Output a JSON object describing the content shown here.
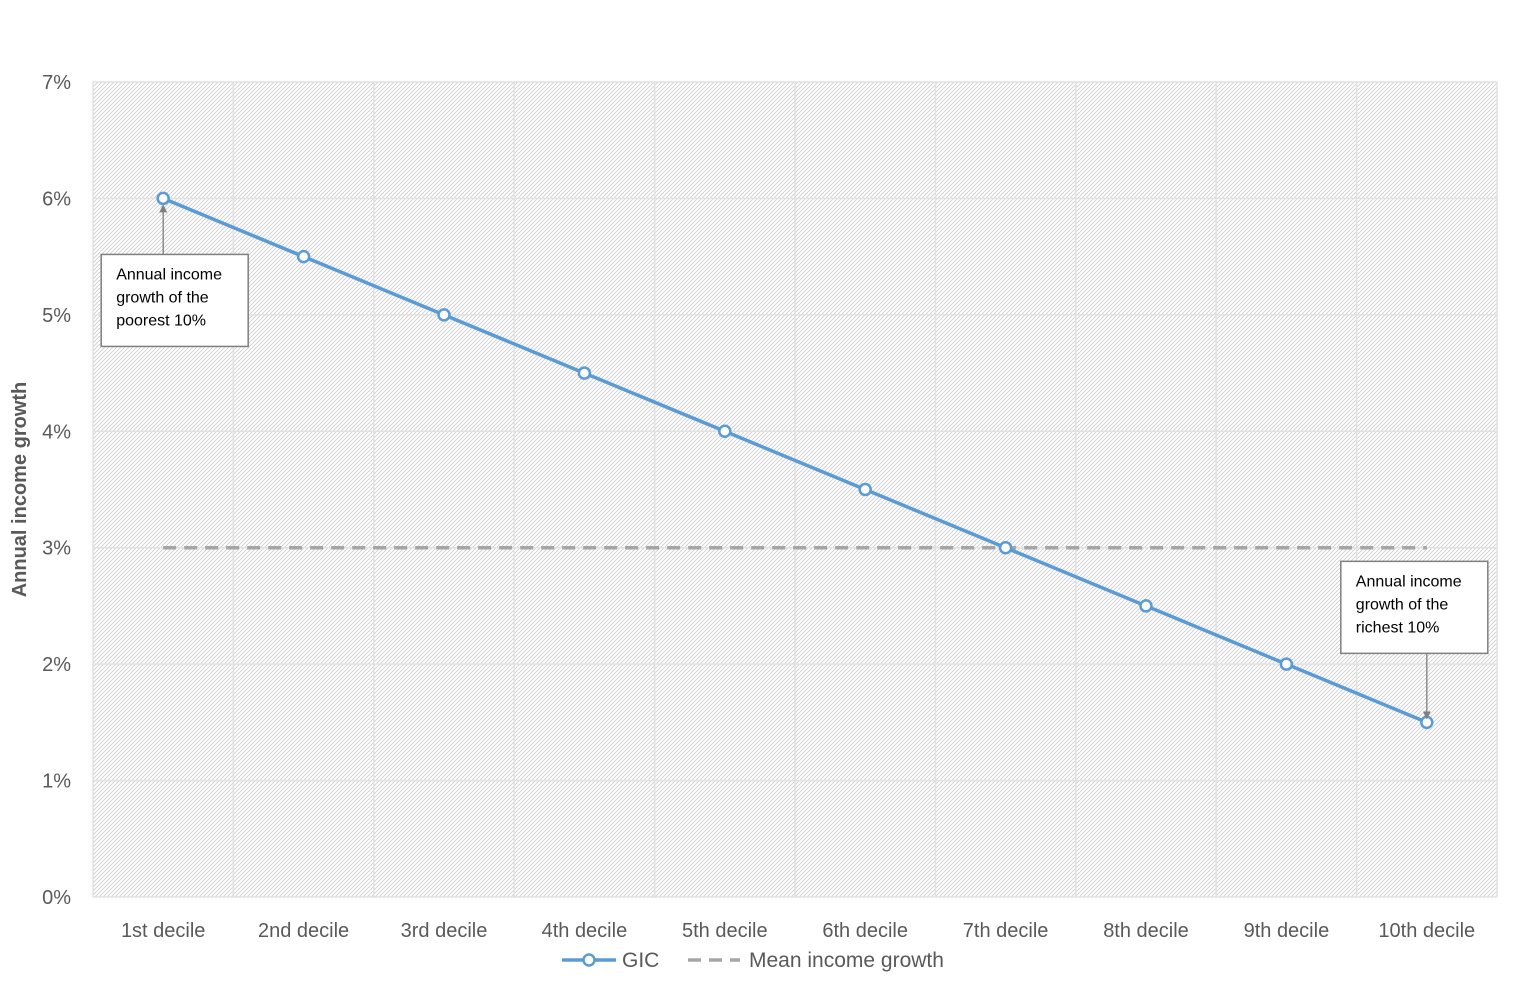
{
  "chart_data": {
    "type": "line",
    "title": "",
    "xlabel": "",
    "ylabel": "Annual income growth",
    "categories": [
      "1st decile",
      "2nd decile",
      "3rd decile",
      "4th decile",
      "5th decile",
      "6th decile",
      "7th decile",
      "8th decile",
      "9th decile",
      "10th decile"
    ],
    "series": [
      {
        "name": "GIC",
        "values": [
          6.0,
          5.5,
          5.0,
          4.5,
          4.0,
          3.5,
          3.0,
          2.5,
          2.0,
          1.5
        ],
        "color": "#5B9BD5",
        "style": "solid-with-hollow-markers"
      },
      {
        "name": "Mean income growth",
        "values": [
          3.0,
          3.0,
          3.0,
          3.0,
          3.0,
          3.0,
          3.0,
          3.0,
          3.0,
          3.0
        ],
        "color": "#A5A5A5",
        "style": "dashed"
      }
    ],
    "ylim": [
      0,
      7
    ],
    "yticks": [
      0,
      1,
      2,
      3,
      4,
      5,
      6,
      7
    ],
    "ytick_labels": [
      "0%",
      "1%",
      "2%",
      "3%",
      "4%",
      "5%",
      "6%",
      "7%"
    ],
    "grid": true,
    "plot_background": "hatched light gray",
    "legend_position": "bottom",
    "annotations": [
      {
        "lines": [
          "Annual income",
          "growth of the",
          "poorest 10%"
        ],
        "target_category": "1st decile",
        "target_value": 6.0,
        "placement": "below"
      },
      {
        "lines": [
          "Annual income",
          "growth of the",
          "richest 10%"
        ],
        "target_category": "10th decile",
        "target_value": 1.5,
        "placement": "above"
      }
    ]
  }
}
